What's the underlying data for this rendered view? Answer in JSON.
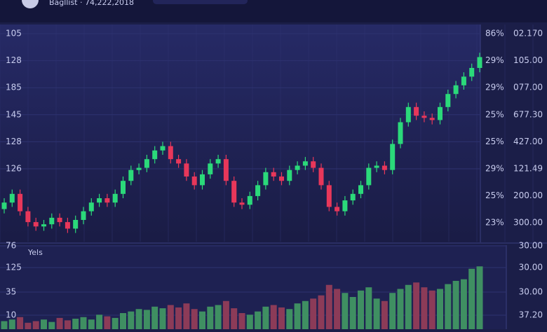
{
  "header": {
    "title": "Bagllist · 74,222,2018"
  },
  "chart_data": {
    "type": "candlestick",
    "open": [
      15,
      18,
      22,
      14,
      9,
      7,
      8,
      11,
      9,
      6,
      10,
      14,
      18,
      20,
      18,
      22,
      28,
      33,
      34,
      38,
      42,
      44,
      38,
      36,
      30,
      26,
      31,
      36,
      38,
      28,
      18,
      17,
      21,
      26,
      32,
      30,
      28,
      33,
      35,
      37,
      34,
      26,
      16,
      14,
      19,
      22,
      26,
      34,
      35,
      33,
      45,
      55,
      62,
      58,
      57,
      56,
      62,
      68,
      72,
      76,
      80
    ],
    "high": [
      20,
      24,
      24,
      16,
      11,
      10,
      13,
      13,
      11,
      12,
      16,
      20,
      22,
      22,
      24,
      30,
      35,
      36,
      40,
      44,
      46,
      46,
      40,
      38,
      32,
      33,
      38,
      40,
      40,
      30,
      20,
      23,
      28,
      34,
      34,
      32,
      35,
      37,
      39,
      39,
      36,
      28,
      18,
      21,
      24,
      28,
      36,
      37,
      37,
      47,
      57,
      64,
      64,
      60,
      59,
      64,
      70,
      74,
      78,
      82,
      87
    ],
    "low": [
      13,
      16,
      12,
      7,
      5,
      5,
      6,
      7,
      4,
      4,
      8,
      12,
      16,
      16,
      16,
      20,
      26,
      31,
      32,
      36,
      40,
      36,
      34,
      28,
      24,
      24,
      29,
      34,
      26,
      16,
      15,
      15,
      19,
      24,
      28,
      26,
      26,
      31,
      33,
      32,
      24,
      14,
      12,
      12,
      17,
      20,
      24,
      32,
      31,
      31,
      43,
      53,
      56,
      55,
      54,
      54,
      60,
      66,
      70,
      74,
      78
    ],
    "close": [
      18,
      22,
      14,
      9,
      7,
      8,
      11,
      9,
      6,
      10,
      14,
      18,
      20,
      18,
      22,
      28,
      33,
      34,
      38,
      42,
      44,
      38,
      36,
      30,
      26,
      31,
      36,
      38,
      28,
      18,
      17,
      21,
      26,
      32,
      30,
      28,
      33,
      35,
      37,
      34,
      26,
      16,
      14,
      19,
      22,
      26,
      34,
      35,
      33,
      45,
      55,
      62,
      58,
      57,
      56,
      62,
      68,
      72,
      76,
      80,
      85
    ],
    "volume": [
      10,
      12,
      15,
      8,
      10,
      12,
      9,
      14,
      11,
      13,
      15,
      12,
      18,
      16,
      14,
      20,
      22,
      25,
      24,
      28,
      26,
      30,
      27,
      32,
      25,
      22,
      28,
      30,
      35,
      26,
      20,
      18,
      22,
      28,
      30,
      27,
      25,
      32,
      35,
      38,
      42,
      55,
      50,
      45,
      40,
      48,
      52,
      38,
      35,
      45,
      50,
      55,
      58,
      52,
      48,
      50,
      56,
      60,
      62,
      75,
      78
    ],
    "ylim": [
      0,
      100
    ],
    "volume_ylim": [
      0,
      100
    ],
    "up_color": "#2bd97a",
    "down_color": "#e8375a",
    "volume_up_color": "#3f8f62",
    "volume_down_color": "#8c3b58",
    "left_labels": [
      "105",
      "128",
      "185",
      "145",
      "128",
      "126"
    ],
    "right_labels_1": [
      "86%",
      "29%",
      "29%",
      "25%",
      "25%",
      "29%",
      "25%",
      "23%"
    ],
    "right_labels_2": [
      "02.170",
      "105.00",
      "077.00",
      "677.30",
      "427.00",
      "121.49",
      "200.00",
      "300.00"
    ],
    "volume_title": "Yels",
    "volume_left_labels": [
      "76",
      "125",
      "35",
      "10"
    ],
    "volume_right_labels": [
      "30.00",
      "30.00",
      "30.00",
      "37.20"
    ]
  }
}
